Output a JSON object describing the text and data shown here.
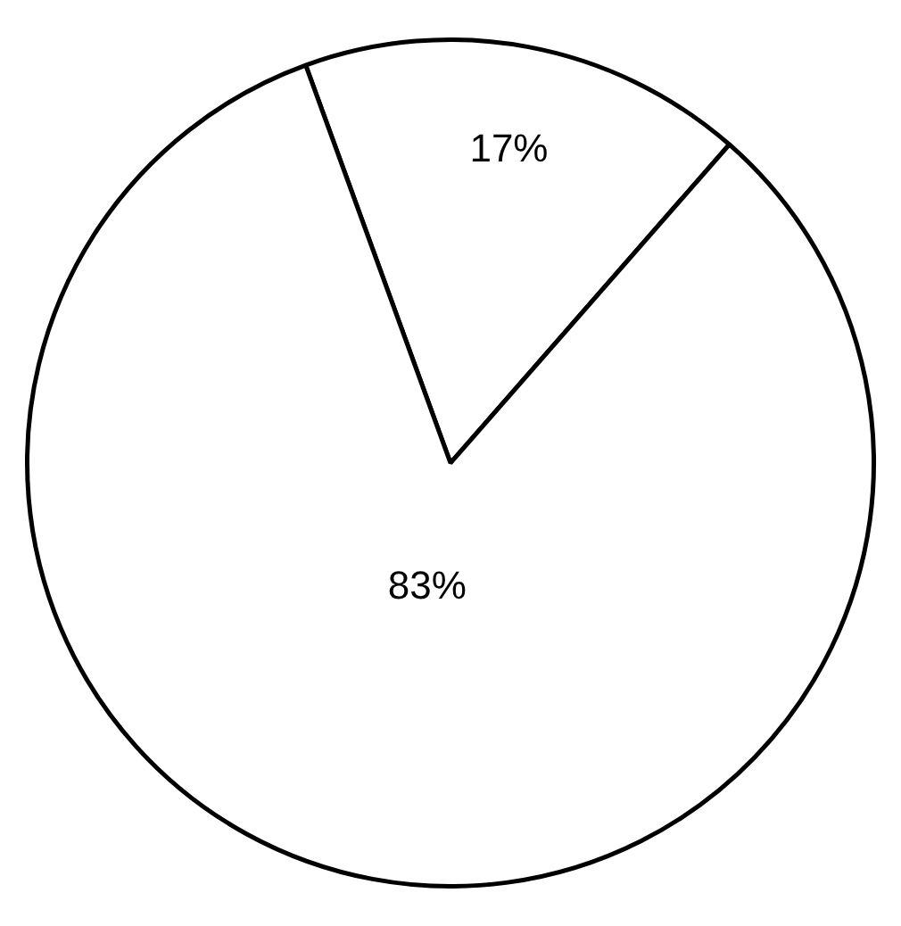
{
  "chart_data": {
    "type": "pie",
    "categories": [
      null,
      null
    ],
    "values": [
      17,
      83
    ],
    "colors": [
      "#ffffff",
      "#ffffff"
    ],
    "value_labels": [
      "17%",
      "83%"
    ],
    "legend": false
  }
}
